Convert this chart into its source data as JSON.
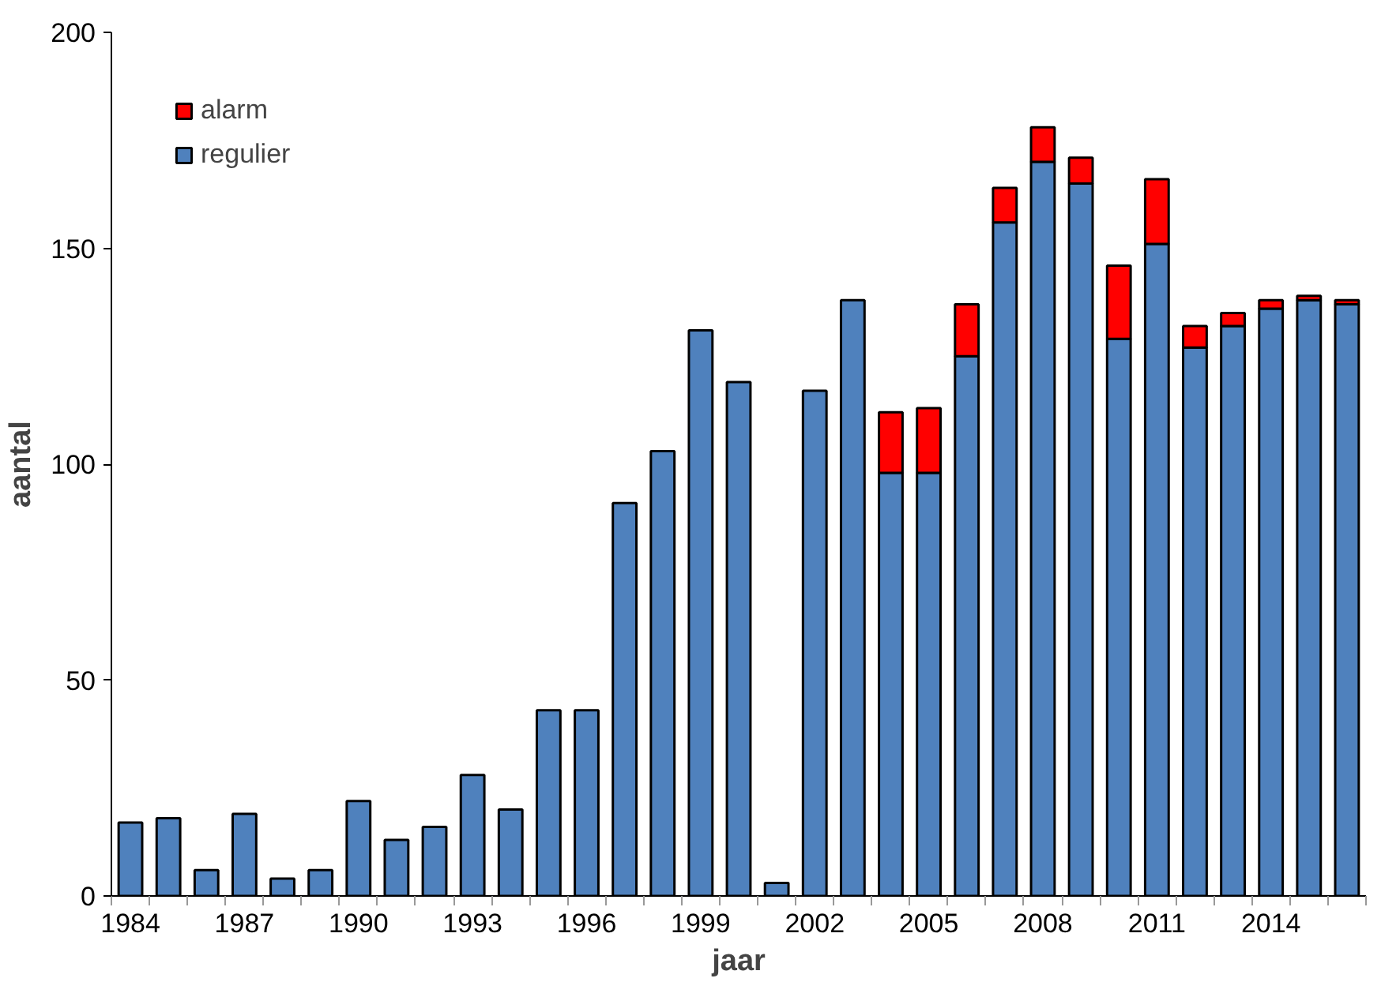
{
  "chart_data": {
    "type": "bar",
    "stacked": true,
    "xlabel": "jaar",
    "ylabel": "aantal",
    "categories": [
      "1984",
      null,
      null,
      "1987",
      null,
      null,
      "1990",
      null,
      null,
      "1993",
      null,
      null,
      "1996",
      null,
      null,
      "1999",
      null,
      null,
      "2002",
      null,
      null,
      "2005",
      null,
      null,
      "2008",
      null,
      null,
      "2011",
      null,
      null,
      "2014",
      null,
      null
    ],
    "series": [
      {
        "name": "regulier",
        "color": "#4f81bd",
        "values": [
          17,
          18,
          6,
          19,
          4,
          6,
          22,
          13,
          16,
          28,
          20,
          43,
          43,
          91,
          103,
          131,
          119,
          3,
          117,
          138,
          98,
          98,
          125,
          156,
          170,
          165,
          129,
          151,
          127,
          132,
          136,
          138,
          137
        ]
      },
      {
        "name": "alarm",
        "color": "#ff0000",
        "values": [
          null,
          null,
          null,
          null,
          null,
          null,
          null,
          null,
          null,
          null,
          null,
          null,
          null,
          null,
          null,
          null,
          null,
          null,
          null,
          null,
          14,
          15,
          12,
          8,
          8,
          6,
          17,
          15,
          5,
          3,
          2,
          1,
          1
        ]
      }
    ],
    "ylim": [
      0,
      200
    ],
    "yticks": [
      0,
      50,
      100,
      150,
      200
    ],
    "grid": false,
    "legend": "top left"
  }
}
